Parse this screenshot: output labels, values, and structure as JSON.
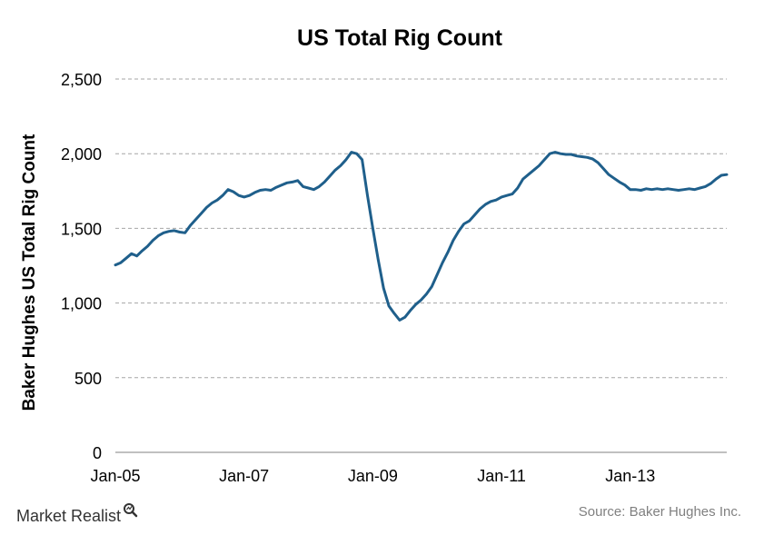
{
  "chart_data": {
    "type": "line",
    "title": "US Total Rig Count",
    "ylabel": "Baker Hughes US Total Rig Count",
    "xlabel": "",
    "ylim": [
      0,
      2500
    ],
    "y_ticks": [
      0,
      500,
      1000,
      1500,
      2000,
      2500
    ],
    "y_tick_labels": [
      "0",
      "500",
      "1,000",
      "1,500",
      "2,000",
      "2,500"
    ],
    "x_ticks": [
      "2005-01",
      "2007-01",
      "2009-01",
      "2011-01",
      "2013-01"
    ],
    "x_tick_labels": [
      "Jan-05",
      "Jan-07",
      "Jan-09",
      "Jan-11",
      "Jan-13"
    ],
    "xlim": [
      "2005-01",
      "2014-07"
    ],
    "grid": "horizontal dashed",
    "line_color": "#1f5f8b",
    "series": [
      {
        "x": [
          "2005-01",
          "2005-02",
          "2005-03",
          "2005-04",
          "2005-05",
          "2005-06",
          "2005-07",
          "2005-08",
          "2005-09",
          "2005-10",
          "2005-11",
          "2005-12",
          "2006-01",
          "2006-02",
          "2006-03",
          "2006-04",
          "2006-05",
          "2006-06",
          "2006-07",
          "2006-08",
          "2006-09",
          "2006-10",
          "2006-11",
          "2006-12",
          "2007-01",
          "2007-02",
          "2007-03",
          "2007-04",
          "2007-05",
          "2007-06",
          "2007-07",
          "2007-08",
          "2007-09",
          "2007-10",
          "2007-11",
          "2007-12",
          "2008-01",
          "2008-02",
          "2008-03",
          "2008-04",
          "2008-05",
          "2008-06",
          "2008-07",
          "2008-08",
          "2008-09",
          "2008-10",
          "2008-11",
          "2008-12",
          "2009-01",
          "2009-02",
          "2009-03",
          "2009-04",
          "2009-05",
          "2009-06",
          "2009-07",
          "2009-08",
          "2009-09",
          "2009-10",
          "2009-11",
          "2009-12",
          "2010-01",
          "2010-02",
          "2010-03",
          "2010-04",
          "2010-05",
          "2010-06",
          "2010-07",
          "2010-08",
          "2010-09",
          "2010-10",
          "2010-11",
          "2010-12",
          "2011-01",
          "2011-02",
          "2011-03",
          "2011-04",
          "2011-05",
          "2011-06",
          "2011-07",
          "2011-08",
          "2011-09",
          "2011-10",
          "2011-11",
          "2011-12",
          "2012-01",
          "2012-02",
          "2012-03",
          "2012-04",
          "2012-05",
          "2012-06",
          "2012-07",
          "2012-08",
          "2012-09",
          "2012-10",
          "2012-11",
          "2012-12",
          "2013-01",
          "2013-02",
          "2013-03",
          "2013-04",
          "2013-05",
          "2013-06",
          "2013-07",
          "2013-08",
          "2013-09",
          "2013-10",
          "2013-11",
          "2013-12",
          "2014-01",
          "2014-02",
          "2014-03",
          "2014-04",
          "2014-05",
          "2014-06",
          "2014-07"
        ],
        "values": [
          1255,
          1270,
          1300,
          1330,
          1315,
          1350,
          1380,
          1420,
          1450,
          1470,
          1480,
          1485,
          1475,
          1470,
          1520,
          1560,
          1600,
          1640,
          1670,
          1690,
          1720,
          1760,
          1745,
          1720,
          1710,
          1720,
          1740,
          1755,
          1760,
          1755,
          1775,
          1790,
          1805,
          1810,
          1820,
          1780,
          1770,
          1760,
          1780,
          1810,
          1850,
          1890,
          1920,
          1960,
          2010,
          2000,
          1960,
          1720,
          1500,
          1290,
          1100,
          980,
          930,
          885,
          905,
          950,
          990,
          1020,
          1060,
          1110,
          1190,
          1270,
          1340,
          1420,
          1480,
          1530,
          1550,
          1590,
          1630,
          1660,
          1680,
          1690,
          1710,
          1720,
          1730,
          1770,
          1830,
          1860,
          1890,
          1920,
          1960,
          2000,
          2010,
          2000,
          1995,
          1995,
          1985,
          1980,
          1975,
          1965,
          1940,
          1900,
          1860,
          1835,
          1810,
          1790,
          1760,
          1760,
          1755,
          1765,
          1760,
          1765,
          1760,
          1765,
          1760,
          1755,
          1760,
          1765,
          1760,
          1770,
          1780,
          1800,
          1830,
          1855,
          1860
        ]
      }
    ]
  },
  "source": "Source: Baker Hughes Inc.",
  "logo_text": "Market Realist"
}
